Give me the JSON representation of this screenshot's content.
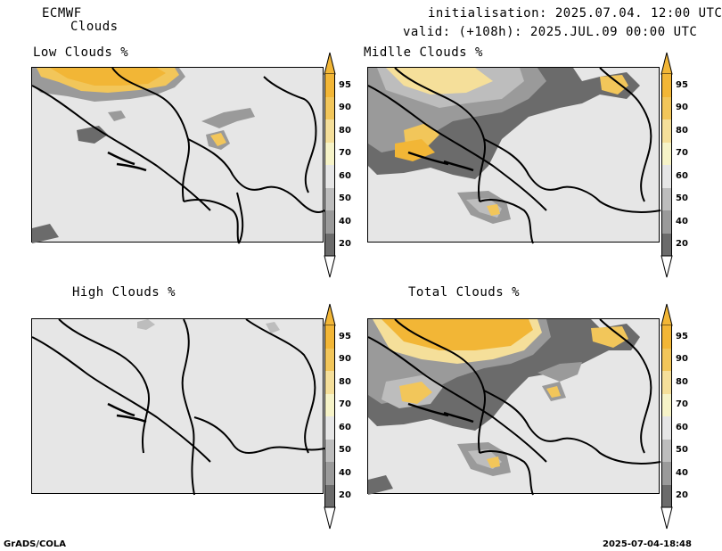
{
  "header": {
    "model": "ECMWF",
    "field": "Clouds",
    "init_line": "initialisation: 2025.07.04. 12:00 UTC",
    "valid_line": "valid: (+108h): 2025.JUL.09 00:00 UTC"
  },
  "panels": [
    {
      "id": "low",
      "title": "Low Clouds %"
    },
    {
      "id": "middle",
      "title": "Midlle Clouds %"
    },
    {
      "id": "high",
      "title": "High Clouds %"
    },
    {
      "id": "total",
      "title": "Total Clouds %"
    }
  ],
  "colorbar": {
    "labels": [
      "95",
      "90",
      "80",
      "70",
      "60",
      "50",
      "40",
      "20"
    ],
    "colors": {
      "c95": "#f2b636",
      "c90": "#f2c65a",
      "c80": "#f5df9a",
      "c70": "#f6f3c8",
      "c60": "#e6e6e6",
      "c50": "#bdbdbd",
      "c40": "#9a9a9a",
      "c20": "#6b6b6b",
      "low": "#ffffff"
    }
  },
  "footer": {
    "left": "GrADS/COLA",
    "right": "2025-07-04-18:48"
  }
}
